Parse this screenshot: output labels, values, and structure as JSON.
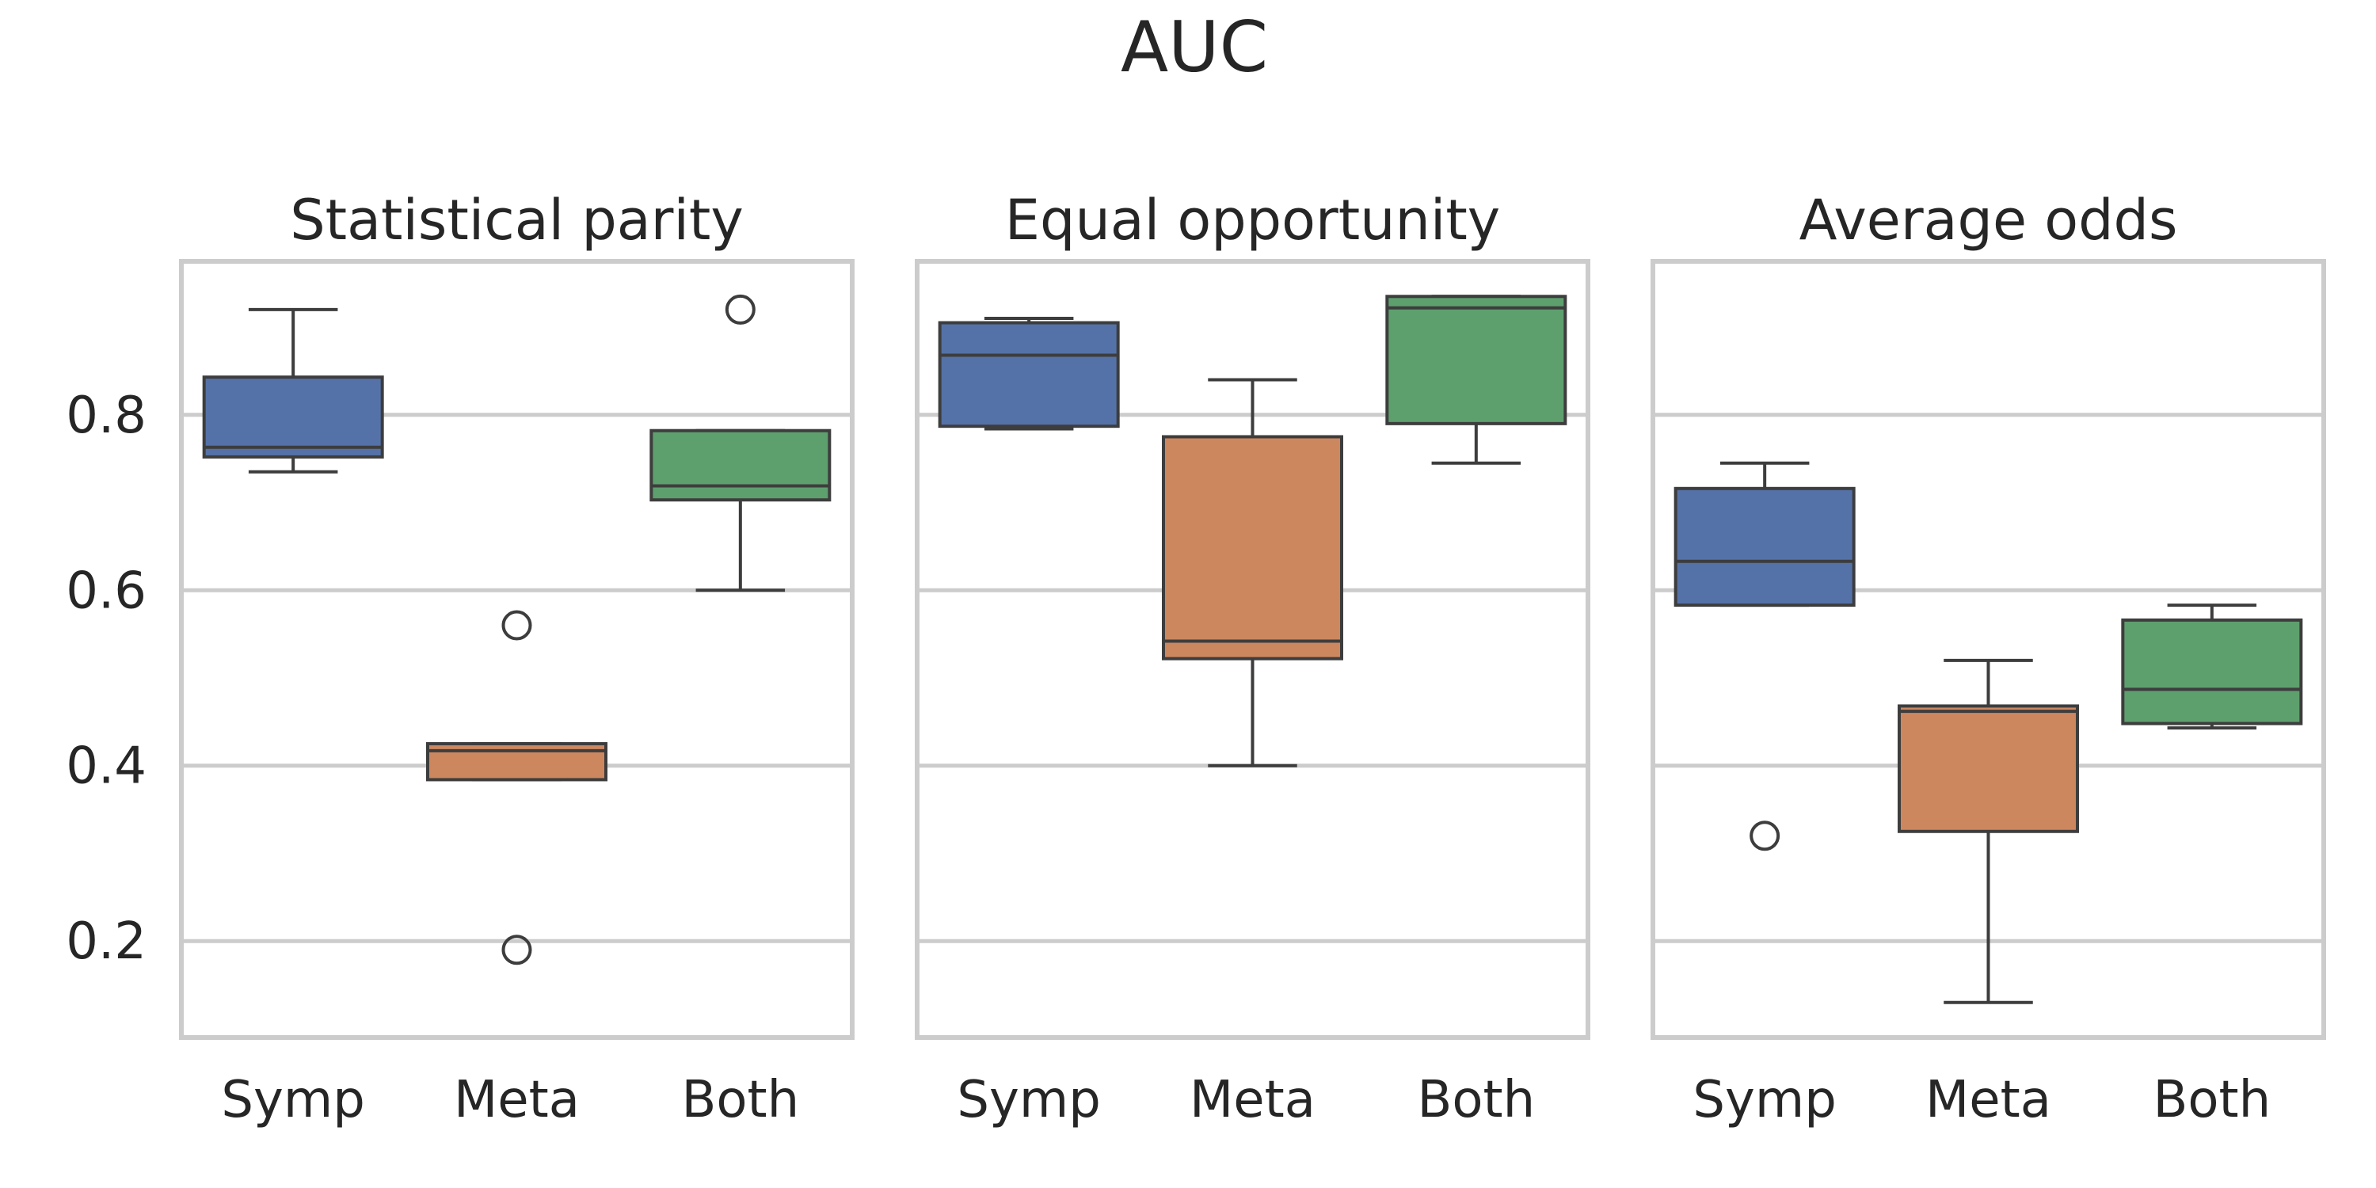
{
  "chart_data": {
    "title": "AUC",
    "type": "box",
    "categories": [
      "Symp",
      "Meta",
      "Both"
    ],
    "colors": {
      "Symp": "#5572a8",
      "Meta": "#cd875f",
      "Both": "#5e9f6e"
    },
    "ylim": [
      0.09,
      0.975
    ],
    "yticks": [
      0.2,
      0.4,
      0.6,
      0.8
    ],
    "ytick_labels": [
      "0.2",
      "0.4",
      "0.6",
      "0.8"
    ],
    "grid": true,
    "panels": [
      {
        "title": "Statistical parity",
        "boxes": [
          {
            "category": "Symp",
            "whislo": 0.735,
            "q1": 0.752,
            "med": 0.763,
            "q3": 0.843,
            "whishi": 0.92,
            "fliers": []
          },
          {
            "category": "Meta",
            "whislo": 0.384,
            "q1": 0.384,
            "med": 0.417,
            "q3": 0.425,
            "whishi": 0.425,
            "fliers": [
              0.56,
              0.19
            ]
          },
          {
            "category": "Both",
            "whislo": 0.6,
            "q1": 0.703,
            "med": 0.719,
            "q3": 0.782,
            "whishi": 0.782,
            "fliers": [
              0.92
            ]
          }
        ]
      },
      {
        "title": "Equal opportunity",
        "boxes": [
          {
            "category": "Symp",
            "whislo": 0.784,
            "q1": 0.787,
            "med": 0.868,
            "q3": 0.905,
            "whishi": 0.91,
            "fliers": []
          },
          {
            "category": "Meta",
            "whislo": 0.4,
            "q1": 0.522,
            "med": 0.542,
            "q3": 0.775,
            "whishi": 0.84,
            "fliers": []
          },
          {
            "category": "Both",
            "whislo": 0.745,
            "q1": 0.79,
            "med": 0.922,
            "q3": 0.935,
            "whishi": 0.935,
            "fliers": []
          }
        ]
      },
      {
        "title": "Average odds",
        "boxes": [
          {
            "category": "Symp",
            "whislo": 0.583,
            "q1": 0.583,
            "med": 0.633,
            "q3": 0.716,
            "whishi": 0.745,
            "fliers": [
              0.32
            ]
          },
          {
            "category": "Meta",
            "whislo": 0.13,
            "q1": 0.325,
            "med": 0.462,
            "q3": 0.468,
            "whishi": 0.52,
            "fliers": []
          },
          {
            "category": "Both",
            "whislo": 0.443,
            "q1": 0.448,
            "med": 0.487,
            "q3": 0.566,
            "whishi": 0.583,
            "fliers": []
          }
        ]
      }
    ]
  }
}
